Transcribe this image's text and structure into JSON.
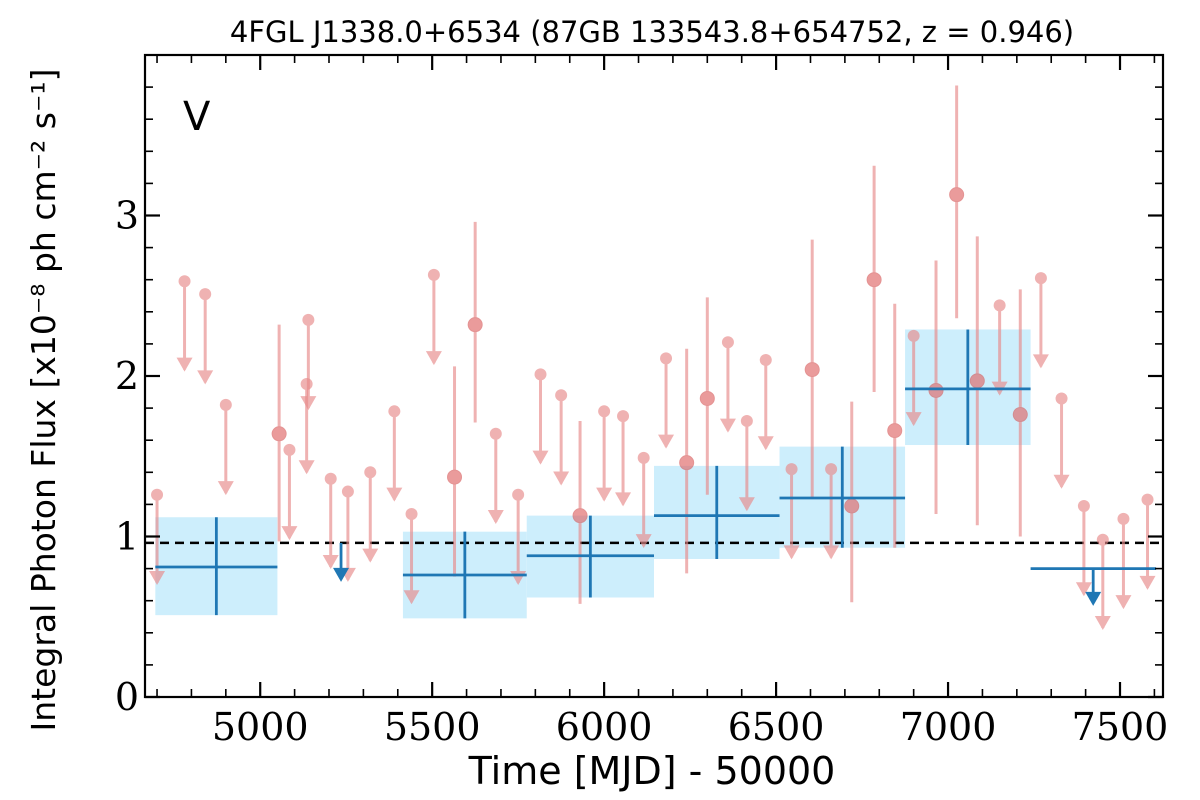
{
  "chart_data": {
    "type": "scatter",
    "title": "4FGL J1338.0+6534 (87GB 133543.8+654752, z = 0.946)",
    "xlabel": "Time [MJD] - 50000",
    "ylabel": "Integral Photon Flux [x10⁻⁸ ph cm⁻² s⁻¹]",
    "xlim": [
      4665,
      7625
    ],
    "ylim": [
      0,
      4.0
    ],
    "xticks": [
      5000,
      5500,
      6000,
      6500,
      7000,
      7500
    ],
    "yticks": [
      0,
      1,
      2,
      3
    ],
    "x_tick_labels": [
      "5000",
      "5500",
      "6000",
      "6500",
      "7000",
      "7500"
    ],
    "y_tick_labels": [
      "0",
      "1",
      "2",
      "3"
    ],
    "grid": false,
    "annotation": "V",
    "colors": {
      "detection": "#e88a8a",
      "upper_limit": "#e88a8a",
      "bayesian_block": "#1f77b4",
      "block_band": "#cdeefc",
      "mean_line": "#000000"
    },
    "mean_flux": 0.96,
    "detections": [
      {
        "x": 5055,
        "y": 1.64,
        "lo": 0.97,
        "hi": 2.32
      },
      {
        "x": 5565,
        "y": 1.37,
        "lo": 0.75,
        "hi": 2.06
      },
      {
        "x": 5625,
        "y": 2.32,
        "lo": 1.71,
        "hi": 2.96
      },
      {
        "x": 5930,
        "y": 1.13,
        "lo": 0.58,
        "hi": 1.72
      },
      {
        "x": 6240,
        "y": 1.46,
        "lo": 0.77,
        "hi": 2.17
      },
      {
        "x": 6300,
        "y": 1.86,
        "lo": 1.26,
        "hi": 2.49
      },
      {
        "x": 6605,
        "y": 2.04,
        "lo": 1.24,
        "hi": 2.85
      },
      {
        "x": 6720,
        "y": 1.19,
        "lo": 0.59,
        "hi": 1.84
      },
      {
        "x": 6785,
        "y": 2.6,
        "lo": 1.9,
        "hi": 3.31
      },
      {
        "x": 6845,
        "y": 1.66,
        "lo": 0.93,
        "hi": 2.45
      },
      {
        "x": 6965,
        "y": 1.91,
        "lo": 1.14,
        "hi": 2.72
      },
      {
        "x": 7025,
        "y": 3.13,
        "lo": 2.36,
        "hi": 3.81
      },
      {
        "x": 7085,
        "y": 1.97,
        "lo": 1.07,
        "hi": 2.87
      },
      {
        "x": 7210,
        "y": 1.76,
        "lo": 1.0,
        "hi": 2.54
      }
    ],
    "upper_limits": [
      {
        "x": 4700,
        "y": 1.26
      },
      {
        "x": 4780,
        "y": 2.59
      },
      {
        "x": 4840,
        "y": 2.51
      },
      {
        "x": 4900,
        "y": 1.82
      },
      {
        "x": 5085,
        "y": 1.54
      },
      {
        "x": 5135,
        "y": 1.95
      },
      {
        "x": 5140,
        "y": 2.35
      },
      {
        "x": 5205,
        "y": 1.36
      },
      {
        "x": 5255,
        "y": 1.28
      },
      {
        "x": 5320,
        "y": 1.4
      },
      {
        "x": 5390,
        "y": 1.78
      },
      {
        "x": 5440,
        "y": 1.14
      },
      {
        "x": 5505,
        "y": 2.63
      },
      {
        "x": 5685,
        "y": 1.64
      },
      {
        "x": 5750,
        "y": 1.26
      },
      {
        "x": 5815,
        "y": 2.01
      },
      {
        "x": 5875,
        "y": 1.88
      },
      {
        "x": 6000,
        "y": 1.78
      },
      {
        "x": 6055,
        "y": 1.75
      },
      {
        "x": 6115,
        "y": 1.49
      },
      {
        "x": 6180,
        "y": 2.11
      },
      {
        "x": 6360,
        "y": 2.21
      },
      {
        "x": 6415,
        "y": 1.72
      },
      {
        "x": 6470,
        "y": 2.1
      },
      {
        "x": 6545,
        "y": 1.42
      },
      {
        "x": 6660,
        "y": 1.42
      },
      {
        "x": 6900,
        "y": 2.25
      },
      {
        "x": 7150,
        "y": 2.44
      },
      {
        "x": 7270,
        "y": 2.61
      },
      {
        "x": 7330,
        "y": 1.86
      },
      {
        "x": 7395,
        "y": 1.19
      },
      {
        "x": 7450,
        "y": 0.98
      },
      {
        "x": 7510,
        "y": 1.11
      },
      {
        "x": 7580,
        "y": 1.23
      }
    ],
    "blocks": [
      {
        "x0": 4695,
        "x1": 5050,
        "value": 0.81,
        "lo": 0.51,
        "hi": 1.12,
        "band": true
      },
      {
        "x0": 5050,
        "x1": 5415,
        "value": 0.96,
        "ul": 0.73,
        "ul_at": 5235,
        "band": false
      },
      {
        "x0": 5415,
        "x1": 5775,
        "value": 0.76,
        "lo": 0.49,
        "hi": 1.03,
        "band": true
      },
      {
        "x0": 5775,
        "x1": 6145,
        "value": 0.88,
        "lo": 0.62,
        "hi": 1.13,
        "band": true
      },
      {
        "x0": 6145,
        "x1": 6510,
        "value": 1.13,
        "lo": 0.86,
        "hi": 1.44,
        "band": true
      },
      {
        "x0": 6510,
        "x1": 6875,
        "value": 1.24,
        "lo": 0.93,
        "hi": 1.56,
        "band": true
      },
      {
        "x0": 6875,
        "x1": 7240,
        "value": 1.92,
        "lo": 1.57,
        "hi": 2.29,
        "band": true
      },
      {
        "x0": 7240,
        "x1": 7605,
        "value": 0.8,
        "ul": 0.58,
        "ul_at": 7422,
        "band": false
      }
    ]
  }
}
